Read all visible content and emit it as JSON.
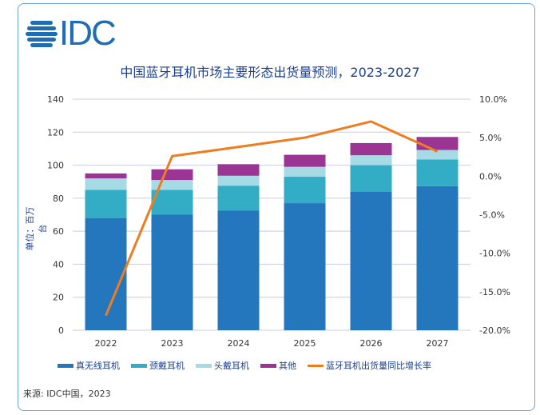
{
  "logo_text": "IDC",
  "chart_data": {
    "type": "bar",
    "title": "中国蓝牙耳机市场主要形态出货量预测，2023-2027",
    "ylabel": "单位：百万台",
    "categories": [
      "2022",
      "2023",
      "2024",
      "2025",
      "2026",
      "2027"
    ],
    "ylim": [
      0,
      140
    ],
    "yticks": [
      0,
      20,
      40,
      60,
      80,
      100,
      120,
      140
    ],
    "y2lim": [
      -20,
      10
    ],
    "y2ticks": [
      "-20.0%",
      "-15.0%",
      "-10.0%",
      "-5.0%",
      "0.0%",
      "5.0%",
      "10.0%"
    ],
    "grid": true,
    "legend_position": "bottom",
    "stacked": true,
    "series": [
      {
        "name": "真无线耳机",
        "color": "#2477bd",
        "values": [
          68,
          70,
          72.6,
          77,
          84,
          87.3
        ]
      },
      {
        "name": "颈戴耳机",
        "color": "#33acc6",
        "values": [
          17,
          15,
          15,
          16,
          16,
          16.2
        ]
      },
      {
        "name": "头戴耳机",
        "color": "#a6dbe6",
        "values": [
          7,
          6,
          6,
          6,
          6,
          5.7
        ]
      },
      {
        "name": "其他",
        "color": "#9b3594",
        "values": [
          3,
          6.5,
          7,
          7.3,
          7.4,
          7.9
        ]
      }
    ],
    "line_series": {
      "name": "蓝牙耳机出货量同比增长率",
      "color": "#ee7d22",
      "axis": "right",
      "unit": "%",
      "values": [
        -18.1,
        2.6,
        3.8,
        5.0,
        7.1,
        3.2
      ]
    }
  },
  "source": "来源: IDC中国，2023"
}
